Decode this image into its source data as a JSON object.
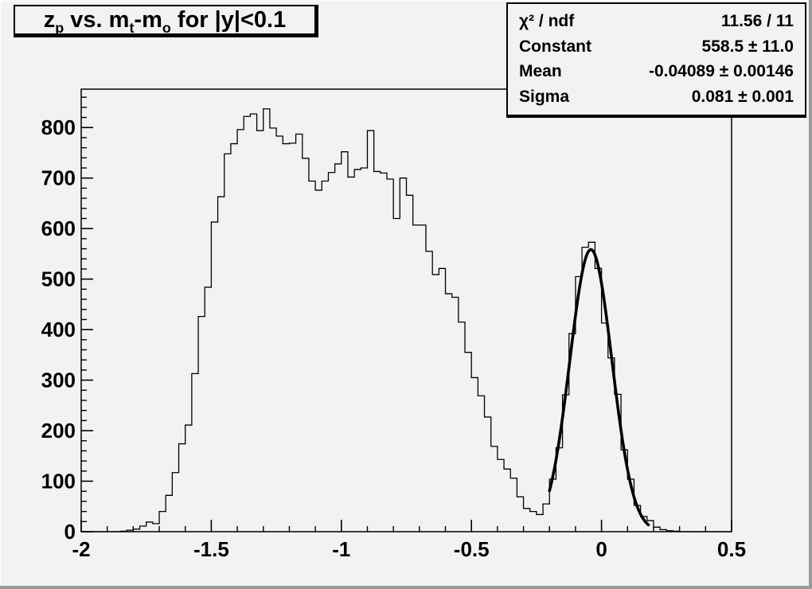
{
  "window": {
    "bg_color": "#f2f2f2",
    "bevel_light": "#fbfbfb",
    "bevel_dark": "#9a9a9a",
    "line_color": "#000000"
  },
  "title": {
    "plain": "z_p vs. m_t-m_o for |y|<0.1",
    "parts": [
      {
        "text": "z",
        "sub": false
      },
      {
        "text": "p",
        "sub": true
      },
      {
        "text": " vs. m",
        "sub": false
      },
      {
        "text": "t",
        "sub": true
      },
      {
        "text": "-m",
        "sub": false
      },
      {
        "text": "o",
        "sub": true
      },
      {
        "text": " for |y|<0.1",
        "sub": false
      }
    ]
  },
  "stats": {
    "rows": [
      {
        "label": "χ² / ndf",
        "value": "11.56 / 11"
      },
      {
        "label": "Constant",
        "value": "558.5 ± 11.0"
      },
      {
        "label": "Mean",
        "value": "-0.04089 ± 0.00146"
      },
      {
        "label": "Sigma",
        "value": "0.081 ± 0.001"
      }
    ]
  },
  "chart_data": {
    "type": "bar",
    "style": "step-histogram",
    "title": "z_p vs. m_t-m_o for |y|<0.1",
    "xlabel": "",
    "ylabel": "",
    "xlim": [
      -2.0,
      0.5
    ],
    "ylim": [
      0,
      876
    ],
    "grid": false,
    "legend_position": "none",
    "x_ticks": [
      -2,
      -1.5,
      -1,
      -0.5,
      0,
      0.5
    ],
    "x_tick_labels": [
      "-2",
      "-1.5",
      "-1",
      "-0.5",
      "0",
      "0.5"
    ],
    "x_minor_step": 0.1,
    "y_ticks": [
      0,
      100,
      200,
      300,
      400,
      500,
      600,
      700,
      800
    ],
    "y_tick_labels": [
      "0",
      "100",
      "200",
      "300",
      "400",
      "500",
      "600",
      "700",
      "800"
    ],
    "y_minor_step": 20,
    "bin_start": -2.0,
    "bin_width": 0.025,
    "values": [
      0,
      0,
      0,
      0,
      0,
      0,
      1,
      3,
      5,
      11,
      19,
      16,
      40,
      72,
      117,
      174,
      211,
      313,
      426,
      484,
      613,
      663,
      748,
      768,
      796,
      822,
      827,
      794,
      837,
      799,
      783,
      768,
      769,
      787,
      739,
      694,
      676,
      694,
      711,
      728,
      752,
      702,
      717,
      720,
      794,
      713,
      710,
      698,
      620,
      700,
      666,
      607,
      607,
      555,
      509,
      521,
      471,
      464,
      415,
      355,
      305,
      269,
      227,
      169,
      143,
      124,
      106,
      69,
      46,
      40,
      34,
      55,
      104,
      166,
      271,
      392,
      505,
      563,
      573,
      521,
      413,
      344,
      272,
      162,
      104,
      52,
      30,
      22,
      9,
      4,
      2,
      1,
      0,
      0,
      0,
      0,
      0,
      0,
      0,
      0
    ],
    "fit": {
      "type": "gaussian",
      "constant": 558.5,
      "mean": -0.04089,
      "sigma": 0.081,
      "chi2": 11.56,
      "ndf": 11,
      "range": [
        -0.2,
        0.18
      ]
    }
  }
}
